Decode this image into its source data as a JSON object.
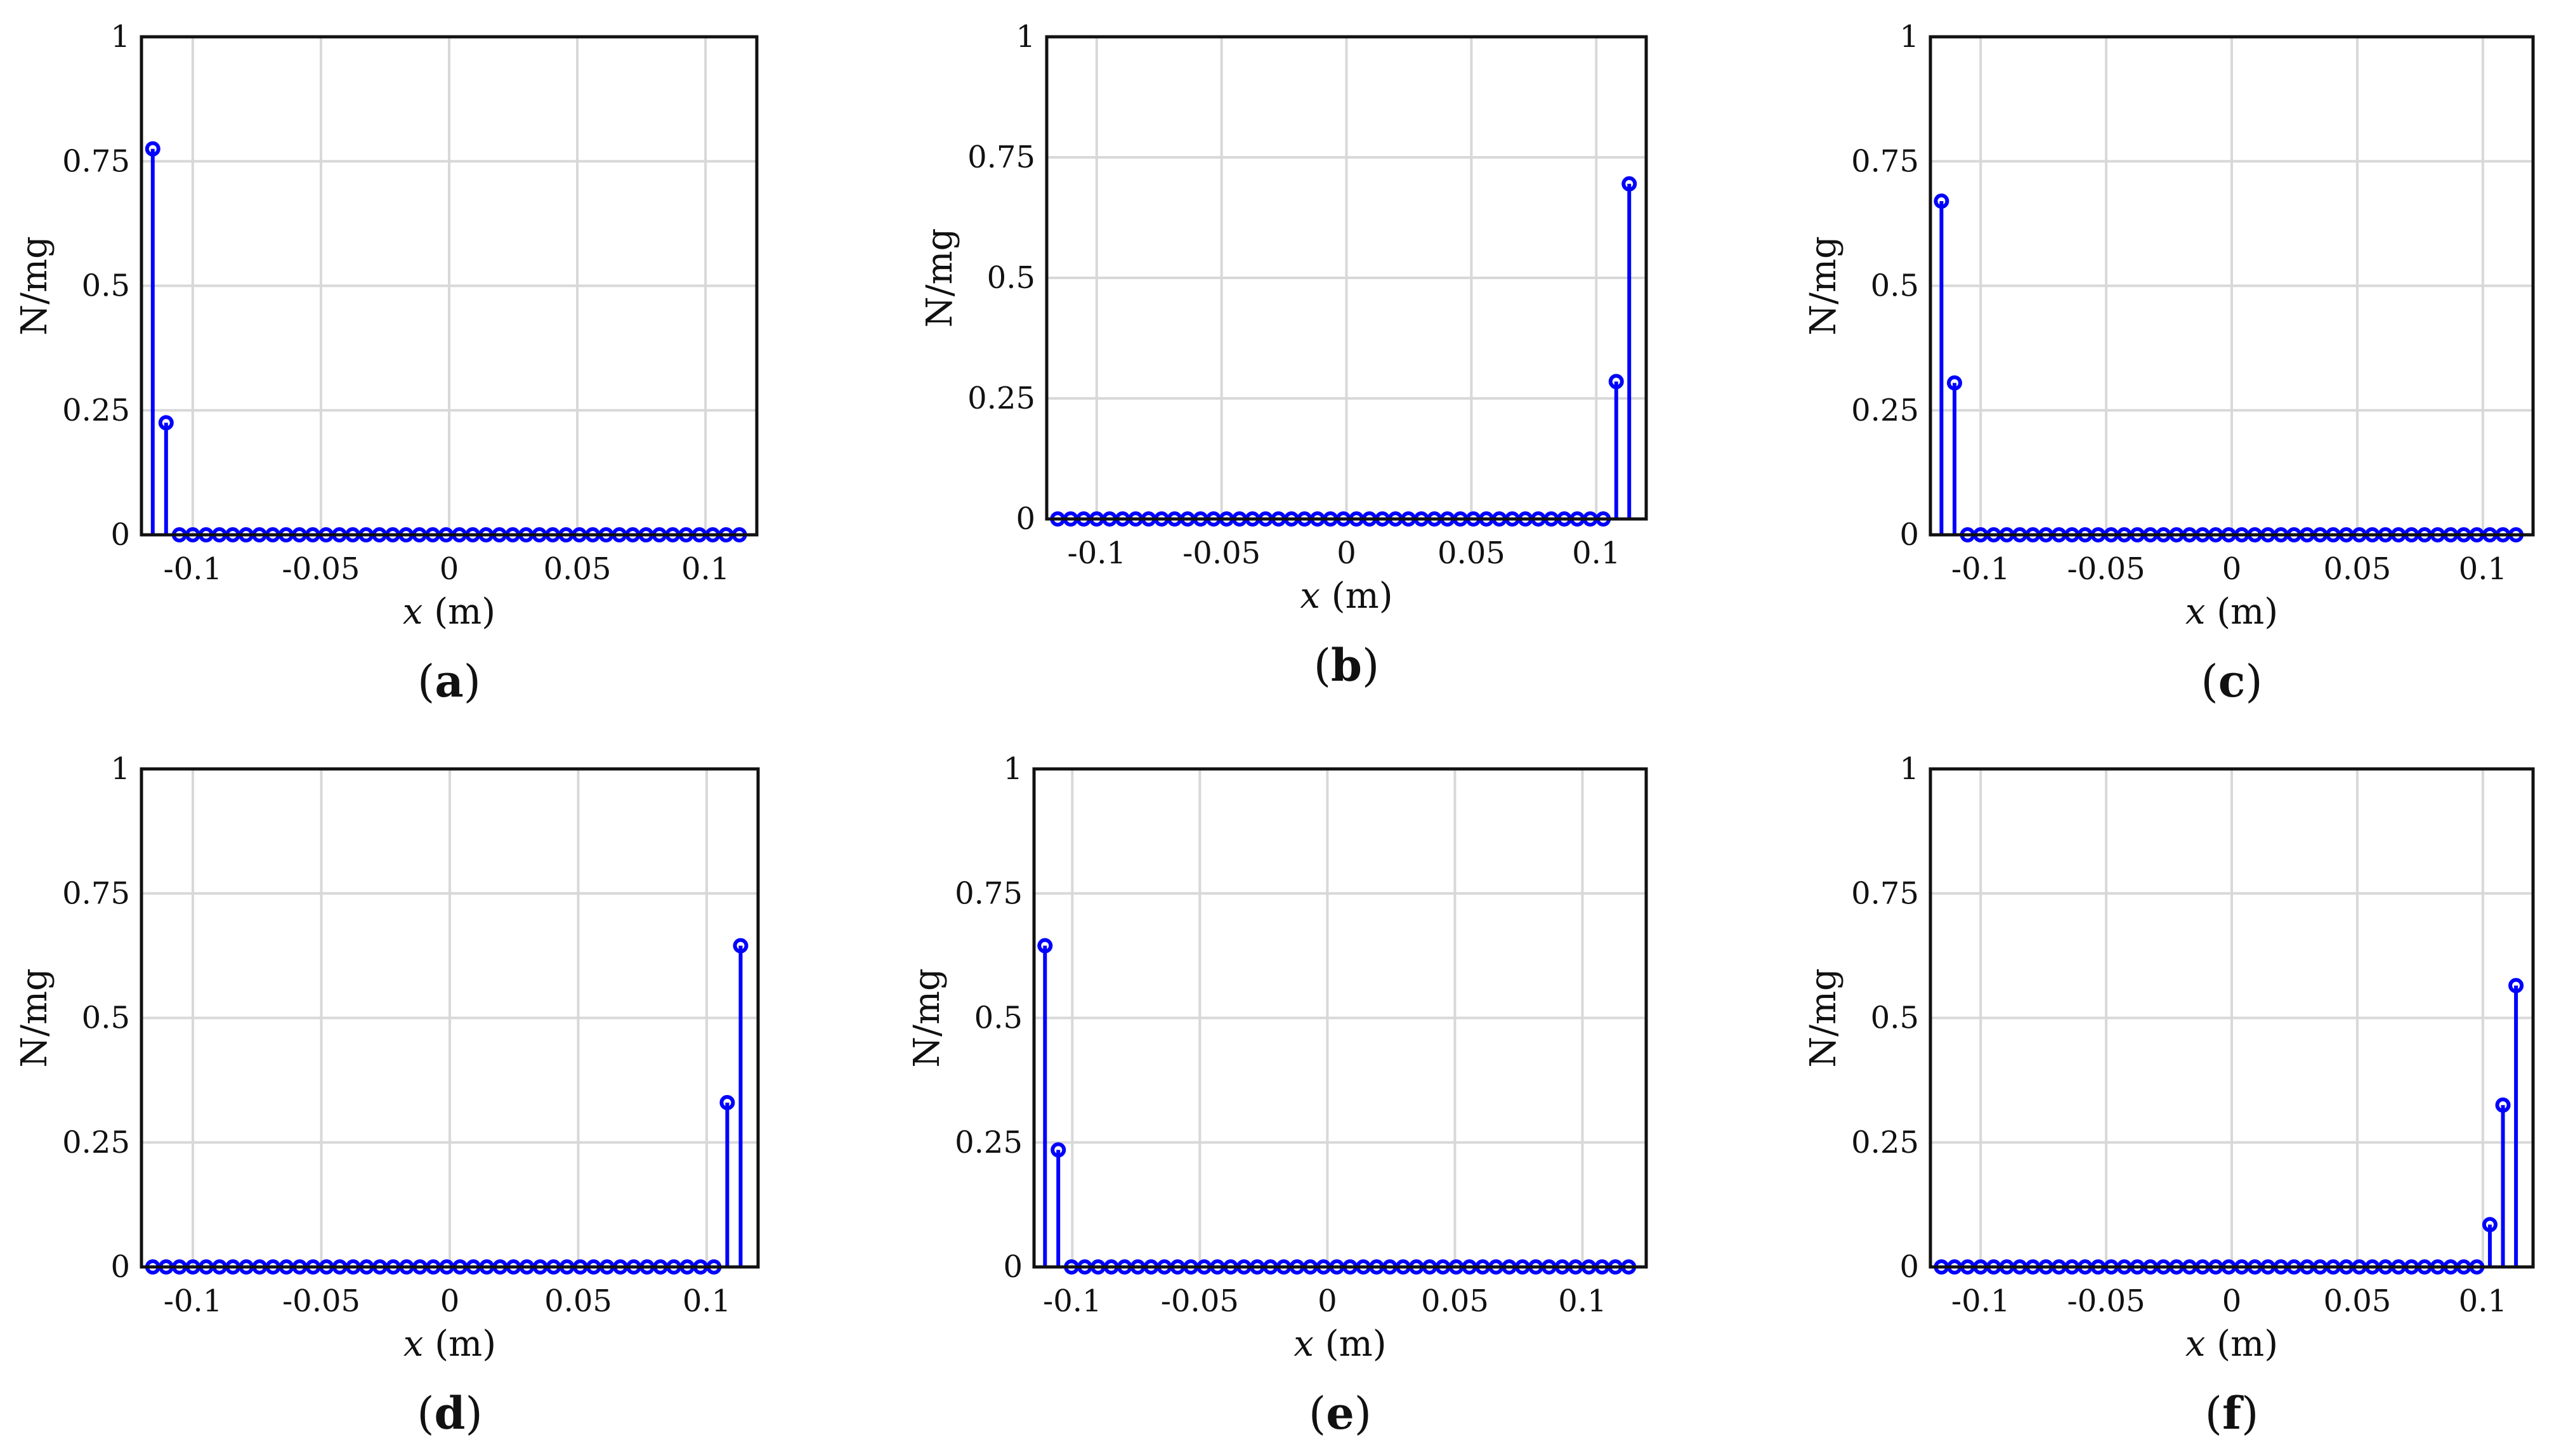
{
  "chart_data": [
    {
      "type": "stem",
      "panel_label": "a",
      "xlabel_var": "x",
      "xlabel_unit": " (m)",
      "ylabel": "N/mg",
      "xlim": [
        -0.12,
        0.12
      ],
      "ylim": [
        0,
        1
      ],
      "xticks": [
        -0.1,
        -0.05,
        0,
        0.05,
        0.1
      ],
      "xtick_labels": [
        "-0.1",
        "-0.05",
        "0",
        "0.05",
        "0.1"
      ],
      "yticks": [
        0,
        0.25,
        0.5,
        0.75,
        1
      ],
      "ytick_labels": [
        "0",
        "0.25",
        "0.5",
        "0.75",
        "1"
      ],
      "grid": true,
      "series_color": "#0000ff",
      "x": [
        -0.1156,
        -0.1104,
        -0.1052,
        -0.1,
        -0.0948,
        -0.0896,
        -0.0844,
        -0.0792,
        -0.074,
        -0.0688,
        -0.0636,
        -0.0584,
        -0.0532,
        -0.048,
        -0.0428,
        -0.0376,
        -0.0324,
        -0.0272,
        -0.022,
        -0.0168,
        -0.0116,
        -0.0064,
        -0.0012,
        0.004,
        0.0092,
        0.0144,
        0.0196,
        0.0248,
        0.03,
        0.0352,
        0.0404,
        0.0456,
        0.0508,
        0.056,
        0.0612,
        0.0664,
        0.0716,
        0.0768,
        0.082,
        0.0872,
        0.0924,
        0.0976,
        0.1028,
        0.108,
        0.1132
      ],
      "values": [
        0.775,
        0.225,
        0,
        0,
        0,
        0,
        0,
        0,
        0,
        0,
        0,
        0,
        0,
        0,
        0,
        0,
        0,
        0,
        0,
        0,
        0,
        0,
        0,
        0,
        0,
        0,
        0,
        0,
        0,
        0,
        0,
        0,
        0,
        0,
        0,
        0,
        0,
        0,
        0,
        0,
        0,
        0,
        0,
        0,
        0
      ]
    },
    {
      "type": "stem",
      "panel_label": "b",
      "xlabel_var": "x",
      "xlabel_unit": " (m)",
      "ylabel": "N/mg",
      "xlim": [
        -0.12,
        0.12
      ],
      "ylim": [
        0,
        1
      ],
      "xticks": [
        -0.1,
        -0.05,
        0,
        0.05,
        0.1
      ],
      "xtick_labels": [
        "-0.1",
        "-0.05",
        "0",
        "0.05",
        "0.1"
      ],
      "yticks": [
        0,
        0.25,
        0.5,
        0.75,
        1
      ],
      "ytick_labels": [
        "0",
        "0.25",
        "0.5",
        "0.75",
        "1"
      ],
      "grid": true,
      "series_color": "#0000ff",
      "x": [
        -0.1156,
        -0.1104,
        -0.1052,
        -0.1,
        -0.0948,
        -0.0896,
        -0.0844,
        -0.0792,
        -0.074,
        -0.0688,
        -0.0636,
        -0.0584,
        -0.0532,
        -0.048,
        -0.0428,
        -0.0376,
        -0.0324,
        -0.0272,
        -0.022,
        -0.0168,
        -0.0116,
        -0.0064,
        -0.0012,
        0.004,
        0.0092,
        0.0144,
        0.0196,
        0.0248,
        0.03,
        0.0352,
        0.0404,
        0.0456,
        0.0508,
        0.056,
        0.0612,
        0.0664,
        0.0716,
        0.0768,
        0.082,
        0.0872,
        0.0924,
        0.0976,
        0.1028,
        0.108,
        0.1132
      ],
      "values": [
        0,
        0,
        0,
        0,
        0,
        0,
        0,
        0,
        0,
        0,
        0,
        0,
        0,
        0,
        0,
        0,
        0,
        0,
        0,
        0,
        0,
        0,
        0,
        0,
        0,
        0,
        0,
        0,
        0,
        0,
        0,
        0,
        0,
        0,
        0,
        0,
        0,
        0,
        0,
        0,
        0,
        0,
        0,
        0.285,
        0.695
      ]
    },
    {
      "type": "stem",
      "panel_label": "c",
      "xlabel_var": "x",
      "xlabel_unit": " (m)",
      "ylabel": "N/mg",
      "xlim": [
        -0.12,
        0.12
      ],
      "ylim": [
        0,
        1
      ],
      "xticks": [
        -0.1,
        -0.05,
        0,
        0.05,
        0.1
      ],
      "xtick_labels": [
        "-0.1",
        "-0.05",
        "0",
        "0.05",
        "0.1"
      ],
      "yticks": [
        0,
        0.25,
        0.5,
        0.75,
        1
      ],
      "ytick_labels": [
        "0",
        "0.25",
        "0.5",
        "0.75",
        "1"
      ],
      "grid": true,
      "series_color": "#0000ff",
      "x": [
        -0.1156,
        -0.1104,
        -0.1052,
        -0.1,
        -0.0948,
        -0.0896,
        -0.0844,
        -0.0792,
        -0.074,
        -0.0688,
        -0.0636,
        -0.0584,
        -0.0532,
        -0.048,
        -0.0428,
        -0.0376,
        -0.0324,
        -0.0272,
        -0.022,
        -0.0168,
        -0.0116,
        -0.0064,
        -0.0012,
        0.004,
        0.0092,
        0.0144,
        0.0196,
        0.0248,
        0.03,
        0.0352,
        0.0404,
        0.0456,
        0.0508,
        0.056,
        0.0612,
        0.0664,
        0.0716,
        0.0768,
        0.082,
        0.0872,
        0.0924,
        0.0976,
        0.1028,
        0.108,
        0.1132
      ],
      "values": [
        0.67,
        0.305,
        0,
        0,
        0,
        0,
        0,
        0,
        0,
        0,
        0,
        0,
        0,
        0,
        0,
        0,
        0,
        0,
        0,
        0,
        0,
        0,
        0,
        0,
        0,
        0,
        0,
        0,
        0,
        0,
        0,
        0,
        0,
        0,
        0,
        0,
        0,
        0,
        0,
        0,
        0,
        0,
        0,
        0,
        0
      ]
    },
    {
      "type": "stem",
      "panel_label": "d",
      "xlabel_var": "x",
      "xlabel_unit": " (m)",
      "ylabel": "N/mg",
      "xlim": [
        -0.12,
        0.12
      ],
      "ylim": [
        0,
        1
      ],
      "xticks": [
        -0.1,
        -0.05,
        0,
        0.05,
        0.1
      ],
      "xtick_labels": [
        "-0.1",
        "-0.05",
        "0",
        "0.05",
        "0.1"
      ],
      "yticks": [
        0,
        0.25,
        0.5,
        0.75,
        1
      ],
      "ytick_labels": [
        "0",
        "0.25",
        "0.5",
        "0.75",
        "1"
      ],
      "grid": true,
      "series_color": "#0000ff",
      "x": [
        -0.1156,
        -0.1104,
        -0.1052,
        -0.1,
        -0.0948,
        -0.0896,
        -0.0844,
        -0.0792,
        -0.074,
        -0.0688,
        -0.0636,
        -0.0584,
        -0.0532,
        -0.048,
        -0.0428,
        -0.0376,
        -0.0324,
        -0.0272,
        -0.022,
        -0.0168,
        -0.0116,
        -0.0064,
        -0.0012,
        0.004,
        0.0092,
        0.0144,
        0.0196,
        0.0248,
        0.03,
        0.0352,
        0.0404,
        0.0456,
        0.0508,
        0.056,
        0.0612,
        0.0664,
        0.0716,
        0.0768,
        0.082,
        0.0872,
        0.0924,
        0.0976,
        0.1028,
        0.108,
        0.1132
      ],
      "values": [
        0,
        0,
        0,
        0,
        0,
        0,
        0,
        0,
        0,
        0,
        0,
        0,
        0,
        0,
        0,
        0,
        0,
        0,
        0,
        0,
        0,
        0,
        0,
        0,
        0,
        0,
        0,
        0,
        0,
        0,
        0,
        0,
        0,
        0,
        0,
        0,
        0,
        0,
        0,
        0,
        0,
        0,
        0,
        0.33,
        0.645
      ]
    },
    {
      "type": "stem",
      "panel_label": "e",
      "xlabel_var": "x",
      "xlabel_unit": " (m)",
      "ylabel": "N/mg",
      "xlim": [
        -0.115,
        0.125
      ],
      "ylim": [
        0,
        1
      ],
      "xticks": [
        -0.1,
        -0.05,
        0,
        0.05,
        0.1
      ],
      "xtick_labels": [
        "-0.1",
        "-0.05",
        "0",
        "0.05",
        "0.1"
      ],
      "yticks": [
        0,
        0.25,
        0.5,
        0.75,
        1
      ],
      "ytick_labels": [
        "0",
        "0.25",
        "0.5",
        "0.75",
        "1"
      ],
      "grid": true,
      "series_color": "#0000ff",
      "x": [
        -0.1107,
        -0.1055,
        -0.1003,
        -0.0951,
        -0.0899,
        -0.0847,
        -0.0795,
        -0.0743,
        -0.0691,
        -0.0639,
        -0.0587,
        -0.0535,
        -0.0483,
        -0.0431,
        -0.0379,
        -0.0327,
        -0.0275,
        -0.0223,
        -0.0171,
        -0.0119,
        -0.0067,
        -0.0015,
        0.0037,
        0.0089,
        0.0141,
        0.0193,
        0.0245,
        0.0297,
        0.0349,
        0.0401,
        0.0453,
        0.0505,
        0.0557,
        0.0609,
        0.0661,
        0.0713,
        0.0765,
        0.0817,
        0.0869,
        0.0921,
        0.0973,
        0.1025,
        0.1077,
        0.1129,
        0.1181
      ],
      "values": [
        0.645,
        0.235,
        0,
        0,
        0,
        0,
        0,
        0,
        0,
        0,
        0,
        0,
        0,
        0,
        0,
        0,
        0,
        0,
        0,
        0,
        0,
        0,
        0,
        0,
        0,
        0,
        0,
        0,
        0,
        0,
        0,
        0,
        0,
        0,
        0,
        0,
        0,
        0,
        0,
        0,
        0,
        0,
        0,
        0,
        0
      ]
    },
    {
      "type": "stem",
      "panel_label": "f",
      "xlabel_var": "x",
      "xlabel_unit": " (m)",
      "ylabel": "N/mg",
      "xlim": [
        -0.12,
        0.12
      ],
      "ylim": [
        0,
        1
      ],
      "xticks": [
        -0.1,
        -0.05,
        0,
        0.05,
        0.1
      ],
      "xtick_labels": [
        "-0.1",
        "-0.05",
        "0",
        "0.05",
        "0.1"
      ],
      "yticks": [
        0,
        0.25,
        0.5,
        0.75,
        1
      ],
      "ytick_labels": [
        "0",
        "0.25",
        "0.5",
        "0.75",
        "1"
      ],
      "grid": true,
      "series_color": "#0000ff",
      "x": [
        -0.1156,
        -0.1104,
        -0.1052,
        -0.1,
        -0.0948,
        -0.0896,
        -0.0844,
        -0.0792,
        -0.074,
        -0.0688,
        -0.0636,
        -0.0584,
        -0.0532,
        -0.048,
        -0.0428,
        -0.0376,
        -0.0324,
        -0.0272,
        -0.022,
        -0.0168,
        -0.0116,
        -0.0064,
        -0.0012,
        0.004,
        0.0092,
        0.0144,
        0.0196,
        0.0248,
        0.03,
        0.0352,
        0.0404,
        0.0456,
        0.0508,
        0.056,
        0.0612,
        0.0664,
        0.0716,
        0.0768,
        0.082,
        0.0872,
        0.0924,
        0.0976,
        0.1028,
        0.108,
        0.1132
      ],
      "values": [
        0,
        0,
        0,
        0,
        0,
        0,
        0,
        0,
        0,
        0,
        0,
        0,
        0,
        0,
        0,
        0,
        0,
        0,
        0,
        0,
        0,
        0,
        0,
        0,
        0,
        0,
        0,
        0,
        0,
        0,
        0,
        0,
        0,
        0,
        0,
        0,
        0,
        0,
        0,
        0,
        0,
        0,
        0.085,
        0.325,
        0.565
      ]
    }
  ]
}
